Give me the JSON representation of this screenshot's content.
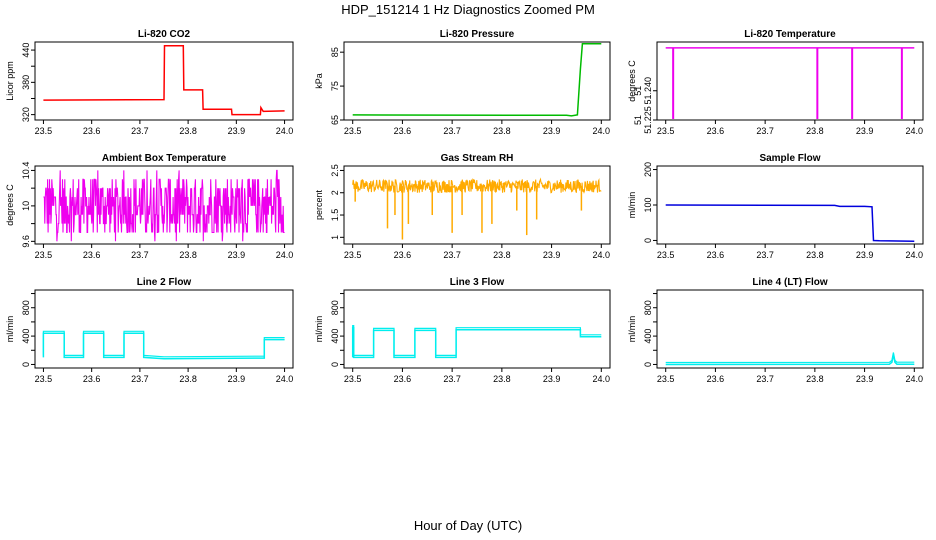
{
  "figure": {
    "title": "HDP_151214  1 Hz Diagnostics Zoomed PM",
    "xlabel": "Hour of Day (UTC)"
  },
  "chart_data": [
    {
      "type": "line",
      "title": "Li-820 CO2",
      "ylabel": "Licor ppm",
      "color": "#ff0000",
      "xlim": [
        23.5,
        24.0
      ],
      "ylim": [
        310,
        455
      ],
      "xticks": [
        "23.5",
        "23.6",
        "23.7",
        "23.8",
        "23.9",
        "24.0"
      ],
      "yticks": [
        320,
        380,
        440
      ],
      "yticks_minor": [
        350,
        410
      ],
      "series": [
        {
          "x": [
            23.5,
            23.75,
            23.751,
            23.79,
            23.791,
            23.83,
            23.831,
            23.89,
            23.891,
            23.95,
            23.951,
            23.955,
            23.956,
            24.0
          ],
          "y": [
            347,
            348,
            448,
            448,
            366,
            366,
            330,
            330,
            320,
            320,
            333,
            327,
            326,
            327
          ]
        }
      ]
    },
    {
      "type": "line",
      "title": "Li-820 Pressure",
      "ylabel": "kPa",
      "color": "#00bb00",
      "xlim": [
        23.5,
        24.0
      ],
      "ylim": [
        65,
        88
      ],
      "xticks": [
        "23.5",
        "23.6",
        "23.7",
        "23.8",
        "23.9",
        "24.0"
      ],
      "yticks": [
        65,
        75,
        85
      ],
      "series": [
        {
          "x": [
            23.5,
            23.93,
            23.94,
            23.952,
            23.958,
            23.962,
            24.0
          ],
          "y": [
            66.5,
            66.4,
            66.2,
            66.5,
            80,
            87.5,
            87.5
          ]
        }
      ]
    },
    {
      "type": "line",
      "title": "Li-820 Temperature",
      "ylabel": "degrees C",
      "color": "#ee00ee",
      "xlim": [
        23.5,
        24.0
      ],
      "ylim": [
        51.225,
        51.265
      ],
      "ytick_labels": [
        "51.225",
        "51.240"
      ],
      "ytick_values": [
        51.225,
        51.24
      ],
      "ytick_extra_labels": [
        "51.225",
        "51.240"
      ],
      "xticks": [
        "23.5",
        "23.6",
        "23.7",
        "23.8",
        "23.9",
        "24.0"
      ],
      "baseline": 51.262,
      "dips": [
        23.515,
        23.805,
        23.875,
        23.975
      ],
      "dip_low": 51.222
    },
    {
      "type": "line",
      "title": "Ambient Box Temperature",
      "ylabel": "degrees C",
      "color": "#ee00ee",
      "xlim": [
        23.5,
        24.0
      ],
      "ylim": [
        9.57,
        10.45
      ],
      "xticks": [
        "23.5",
        "23.6",
        "23.7",
        "23.8",
        "23.9",
        "24.0"
      ],
      "yticks": [
        9.6,
        10.0,
        10.4
      ],
      "yticks_minor": [
        9.8,
        10.2
      ],
      "noise": {
        "center": 10.0,
        "levels": [
          9.7,
          9.8,
          9.9,
          10.0,
          10.1,
          10.2,
          10.3
        ]
      }
    },
    {
      "type": "line",
      "title": "Gas Stream RH",
      "ylabel": "percent",
      "color": "#ffaa00",
      "xlim": [
        23.5,
        24.0
      ],
      "ylim": [
        0.85,
        2.6
      ],
      "xticks": [
        "23.5",
        "23.6",
        "23.7",
        "23.8",
        "23.9",
        "24.0"
      ],
      "yticks": [
        1.0,
        1.5,
        2.0,
        2.5
      ],
      "noise": {
        "center": 2.15,
        "spread": 0.3,
        "spikes": [
          [
            23.505,
            1.8
          ],
          [
            23.57,
            1.2
          ],
          [
            23.585,
            1.5
          ],
          [
            23.6,
            0.95
          ],
          [
            23.612,
            1.3
          ],
          [
            23.66,
            1.5
          ],
          [
            23.7,
            1.1
          ],
          [
            23.72,
            1.5
          ],
          [
            23.76,
            1.1
          ],
          [
            23.78,
            1.3
          ],
          [
            23.83,
            1.6
          ],
          [
            23.85,
            1.05
          ],
          [
            23.87,
            1.4
          ],
          [
            23.96,
            1.6
          ]
        ]
      }
    },
    {
      "type": "line",
      "title": "Sample Flow",
      "ylabel": "ml/min",
      "color": "#0000dd",
      "xlim": [
        23.5,
        24.0
      ],
      "ylim": [
        -10,
        210
      ],
      "xticks": [
        "23.5",
        "23.6",
        "23.7",
        "23.8",
        "23.9",
        "24.0"
      ],
      "yticks": [
        0,
        100,
        200
      ],
      "series": [
        {
          "x": [
            23.5,
            23.84,
            23.85,
            23.9,
            23.915,
            23.918,
            23.93,
            24.0
          ],
          "y": [
            100,
            99,
            96,
            96,
            95,
            0,
            -1,
            -2
          ]
        }
      ]
    },
    {
      "type": "line",
      "title": "Line 2 Flow",
      "ylabel": "ml/min",
      "color": "#00eeee",
      "xlim": [
        23.5,
        24.0
      ],
      "ylim": [
        -50,
        1050
      ],
      "xticks": [
        "23.5",
        "23.6",
        "23.7",
        "23.8",
        "23.9",
        "24.0"
      ],
      "yticks": [
        0,
        400,
        800
      ],
      "yticks_minor": [
        200,
        600,
        1000
      ],
      "series": [
        {
          "x": [
            23.5,
            23.5,
            23.543,
            23.543,
            23.583,
            23.583,
            23.625,
            23.625,
            23.667,
            23.667,
            23.708,
            23.708,
            23.75,
            23.958,
            23.958,
            24.0
          ],
          "y": [
            100,
            440,
            440,
            100,
            100,
            440,
            440,
            100,
            100,
            440,
            440,
            100,
            80,
            90,
            350,
            350
          ]
        }
      ]
    },
    {
      "type": "line",
      "title": "Line 3 Flow",
      "ylabel": "ml/min",
      "color": "#00eeee",
      "xlim": [
        23.5,
        24.0
      ],
      "ylim": [
        -50,
        1050
      ],
      "xticks": [
        "23.5",
        "23.6",
        "23.7",
        "23.8",
        "23.9",
        "24.0"
      ],
      "yticks": [
        0,
        400,
        800
      ],
      "yticks_minor": [
        200,
        600,
        1000
      ],
      "series": [
        {
          "x": [
            23.5,
            23.5,
            23.502,
            23.502,
            23.542,
            23.542,
            23.583,
            23.583,
            23.625,
            23.625,
            23.667,
            23.667,
            23.708,
            23.708,
            23.958,
            23.958,
            24.0
          ],
          "y": [
            100,
            520,
            520,
            100,
            100,
            480,
            480,
            100,
            100,
            480,
            480,
            100,
            100,
            490,
            490,
            390,
            390
          ]
        }
      ]
    },
    {
      "type": "line",
      "title": "Line 4 (LT) Flow",
      "ylabel": "ml/min",
      "color": "#00eeee",
      "xlim": [
        23.5,
        24.0
      ],
      "ylim": [
        -50,
        1050
      ],
      "xticks": [
        "23.5",
        "23.6",
        "23.7",
        "23.8",
        "23.9",
        "24.0"
      ],
      "yticks": [
        0,
        400,
        800
      ],
      "yticks_minor": [
        200,
        600,
        1000
      ],
      "series": [
        {
          "x": [
            23.5,
            23.95,
            23.955,
            23.958,
            23.961,
            23.965,
            24.0
          ],
          "y": [
            0,
            2,
            30,
            140,
            30,
            3,
            3
          ]
        }
      ]
    }
  ]
}
